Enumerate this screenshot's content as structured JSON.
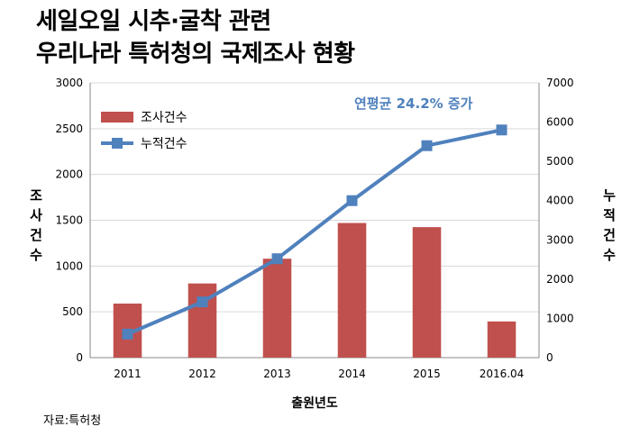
{
  "title": {
    "line1": "세일오일 시추·굴착 관련",
    "line2": "우리나라 특허청의 국제조사 현황"
  },
  "source": "자료:특허청",
  "colors": {
    "bar": "#C0504D",
    "line": "#4F81BD",
    "annotation": "#4F81BD",
    "grid": "#D9D9D9"
  },
  "chart_data": {
    "type": "bar",
    "categories": [
      "2011",
      "2012",
      "2013",
      "2014",
      "2015",
      "2016.04"
    ],
    "series": [
      {
        "name": "조사건수",
        "type": "bar",
        "axis": "left",
        "values": [
          590,
          810,
          1080,
          1470,
          1425,
          395
        ]
      },
      {
        "name": "누적건수",
        "type": "line",
        "axis": "right",
        "marker": "square",
        "values": [
          600,
          1420,
          2520,
          4000,
          5400,
          5800
        ]
      }
    ],
    "xlabel": "출원년도",
    "ylabel": "조사건수",
    "y2label": "누적건수",
    "ylim": [
      0,
      3000
    ],
    "yticks": [
      "0",
      "500",
      "1000",
      "1500",
      "2000",
      "2500",
      "3000"
    ],
    "y2lim": [
      0,
      7000
    ],
    "y2ticks": [
      "0",
      "1000",
      "2000",
      "3000",
      "4000",
      "5000",
      "6000",
      "7000"
    ],
    "annotation": "연평균 24.2% 증가",
    "grid": true,
    "legend_position": "top-left"
  }
}
